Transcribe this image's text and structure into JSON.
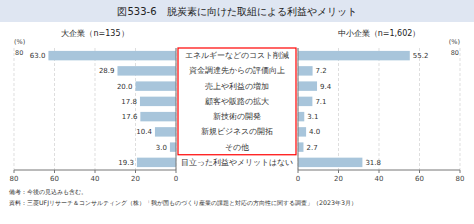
{
  "chart_data": [
    {
      "type": "bar",
      "orientation": "horizontal",
      "title": "図533-6　脱炭素に向けた取組による利益やメリット",
      "subtitle": "大企業（n=135）",
      "xlabel": "(%)",
      "categories": [
        "エネルギーなどのコスト削減",
        "資金調達先からの評価向上",
        "売上や利益の増加",
        "顧客や販路の拡大",
        "新技術の開発",
        "新規ビジネスの開拓",
        "その他",
        "目立った利益やメリットはない"
      ],
      "values": [
        63.0,
        28.9,
        20.0,
        17.8,
        17.6,
        10.4,
        3.0,
        19.3
      ],
      "value_labels": [
        "63.0",
        "28.9",
        "20.0",
        "17.8",
        "17.6",
        "10.4",
        "3.0",
        "19.3"
      ],
      "data_labels": true,
      "color": "#a8c5db",
      "xlim": [
        0,
        80
      ],
      "xticks": [
        0,
        20,
        40,
        60,
        80
      ],
      "grid": true,
      "annotations": [
        "備考：今後の見込みも含む。",
        "資料：三菱UFJリサーチ＆コンサルティング（株）「我が国ものづくり産業の課題と対応の方向性に関する調査」（2023年3月）"
      ]
    },
    {
      "type": "bar",
      "orientation": "horizontal",
      "subtitle": "中小企業（n=1,602）",
      "xlabel": "(%)",
      "categories": [
        "エネルギーなどのコスト削減",
        "資金調達先からの評価向上",
        "売上や利益の増加",
        "顧客や販路の拡大",
        "新技術の開発",
        "新規ビジネスの開拓",
        "その他",
        "目立った利益やメリットはない"
      ],
      "values": [
        55.2,
        7.2,
        9.4,
        7.1,
        3.1,
        4.0,
        2.7,
        31.8
      ],
      "value_labels": [
        "55.2",
        "7.2",
        "9.4",
        "7.1",
        "3.1",
        "4.0",
        "2.7",
        "31.8"
      ],
      "data_labels": true,
      "color": "#a8c5db",
      "xlim": [
        0,
        80
      ],
      "xticks": [
        0,
        20,
        40,
        60,
        80
      ],
      "grid": true
    }
  ]
}
